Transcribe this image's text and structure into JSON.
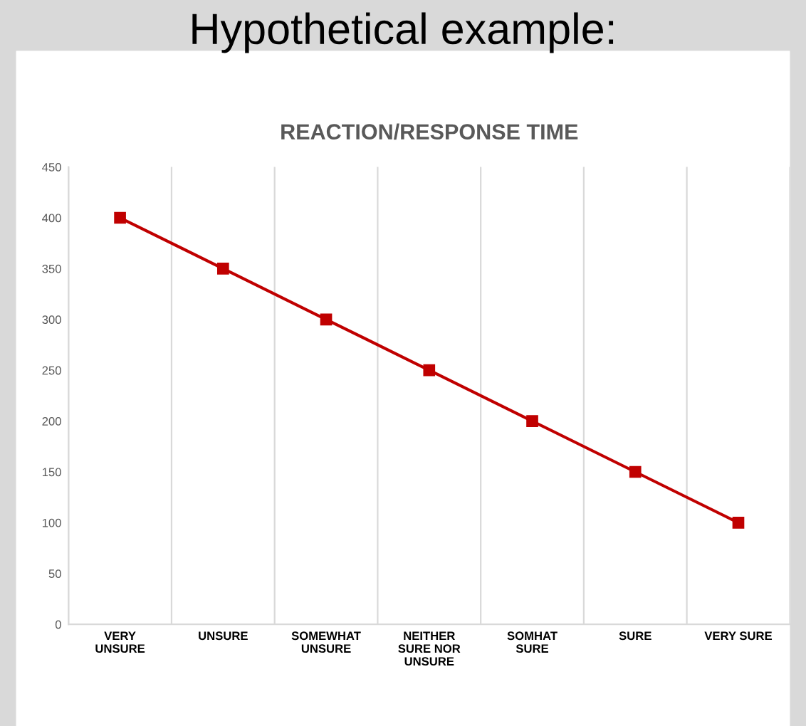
{
  "chart_data": {
    "type": "line",
    "title": "Hypothetical example:",
    "subtitle": "REACTION/RESPONSE TIME",
    "categories": [
      "VERY\nUNSURE",
      "UNSURE",
      "SOMEWHAT\nUNSURE",
      "NEITHER\nSURE NOR\nUNSURE",
      "SOMHAT\nSURE",
      "SURE",
      "VERY SURE"
    ],
    "series": [
      {
        "color": "#c00000",
        "values": [
          400,
          350,
          300,
          250,
          200,
          150,
          100
        ]
      }
    ],
    "ylim": [
      0,
      450
    ],
    "yticks": [
      0,
      50,
      100,
      150,
      200,
      250,
      300,
      350,
      400,
      450
    ],
    "grid": "x",
    "marker": "square",
    "line_style": "solid"
  }
}
